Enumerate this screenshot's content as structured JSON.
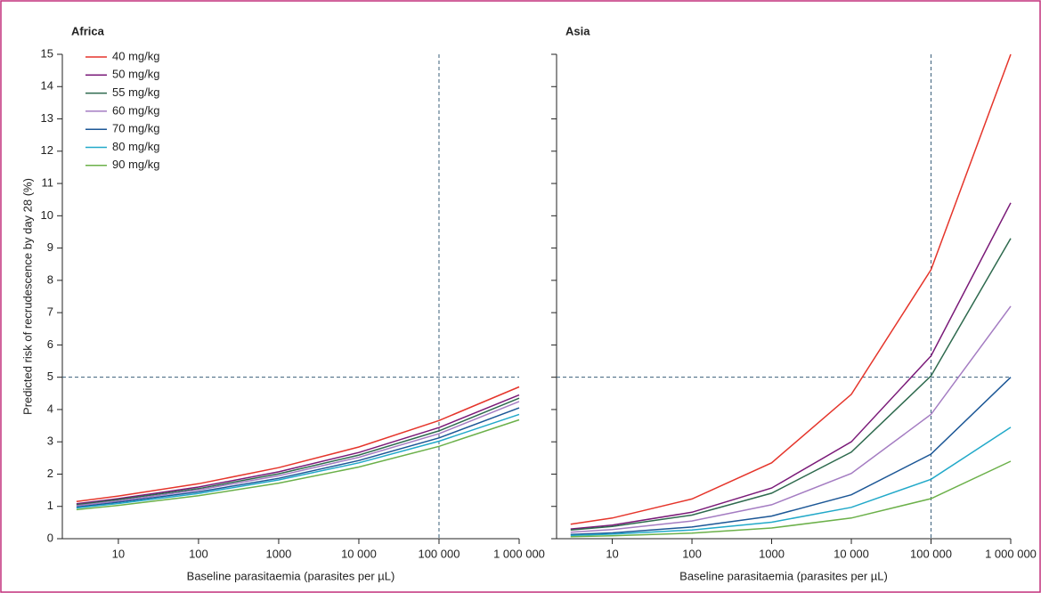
{
  "chart_data": [
    {
      "type": "line",
      "title": "Africa",
      "x_label": "Baseline parasitaemia (parasites per µL)",
      "y_label": "Predicted risk of recrudescence by day 28 (%)",
      "x_scale": "log",
      "xlim": [
        2,
        1000000
      ],
      "xticks": [
        10,
        100,
        1000,
        {
          "value": 10000,
          "label": "10 000"
        },
        {
          "value": 100000,
          "label": "100 000"
        },
        {
          "value": 1000000,
          "label": "1 000 000"
        }
      ],
      "ylim": [
        0,
        15
      ],
      "yticks": [
        0,
        1,
        2,
        3,
        4,
        5,
        6,
        7,
        8,
        9,
        10,
        11,
        12,
        13,
        14,
        15
      ],
      "ytick_labels": true,
      "hline": 5,
      "vline": 100000,
      "legend": "upper left",
      "x": [
        3,
        10,
        100,
        1000,
        10000,
        100000,
        1000000
      ],
      "series": [
        {
          "name": "40 mg/kg",
          "color": "#e5352b",
          "values": [
            1.15,
            1.32,
            1.7,
            2.2,
            2.84,
            3.66,
            4.7
          ]
        },
        {
          "name": "50 mg/kg",
          "color": "#7a1a78",
          "values": [
            1.08,
            1.24,
            1.6,
            2.07,
            2.67,
            3.44,
            4.45
          ]
        },
        {
          "name": "55 mg/kg",
          "color": "#2e6a4e",
          "values": [
            1.05,
            1.21,
            1.55,
            2.01,
            2.59,
            3.34,
            4.35
          ]
        },
        {
          "name": "60 mg/kg",
          "color": "#a47cc2",
          "values": [
            1.02,
            1.17,
            1.51,
            1.95,
            2.52,
            3.25,
            4.25
          ]
        },
        {
          "name": "70 mg/kg",
          "color": "#1c5796",
          "values": [
            0.98,
            1.13,
            1.45,
            1.87,
            2.42,
            3.12,
            4.05
          ]
        },
        {
          "name": "80 mg/kg",
          "color": "#22a9c9",
          "values": [
            0.95,
            1.09,
            1.4,
            1.82,
            2.35,
            3.02,
            3.85
          ]
        },
        {
          "name": "90 mg/kg",
          "color": "#6bb049",
          "values": [
            0.9,
            1.03,
            1.33,
            1.72,
            2.22,
            2.86,
            3.68
          ]
        }
      ]
    },
    {
      "type": "line",
      "title": "Asia",
      "x_label": "Baseline parasitaemia (parasites per µL)",
      "x_scale": "log",
      "xlim": [
        2,
        1000000
      ],
      "xticks": [
        10,
        100,
        1000,
        {
          "value": 10000,
          "label": "10 000"
        },
        {
          "value": 100000,
          "label": "100 000"
        },
        {
          "value": 1000000,
          "label": "1 000 000"
        }
      ],
      "ylim": [
        0,
        15
      ],
      "yticks": [
        0,
        1,
        2,
        3,
        4,
        5,
        6,
        7,
        8,
        9,
        10,
        11,
        12,
        13,
        14,
        15
      ],
      "ytick_labels": false,
      "hline": 5,
      "vline": 100000,
      "x": [
        3,
        10,
        100,
        1000,
        10000,
        100000,
        1000000
      ],
      "series": [
        {
          "color": "#e5352b",
          "values": [
            0.45,
            0.64,
            1.23,
            2.35,
            4.47,
            8.33,
            15.0
          ]
        },
        {
          "color": "#7a1a78",
          "values": [
            0.3,
            0.42,
            0.82,
            1.57,
            3.0,
            5.66,
            10.4
          ]
        },
        {
          "color": "#2e6a4e",
          "values": [
            0.27,
            0.38,
            0.73,
            1.41,
            2.68,
            5.04,
            9.3
          ]
        },
        {
          "color": "#a47cc2",
          "values": [
            0.2,
            0.28,
            0.55,
            1.05,
            2.02,
            3.85,
            7.2
          ]
        },
        {
          "color": "#1c5796",
          "values": [
            0.13,
            0.18,
            0.36,
            0.7,
            1.36,
            2.62,
            5.0
          ]
        },
        {
          "color": "#22a9c9",
          "values": [
            0.1,
            0.14,
            0.27,
            0.51,
            0.97,
            1.84,
            3.45
          ]
        },
        {
          "color": "#6bb049",
          "values": [
            0.06,
            0.09,
            0.17,
            0.33,
            0.64,
            1.24,
            2.4
          ]
        }
      ]
    }
  ]
}
